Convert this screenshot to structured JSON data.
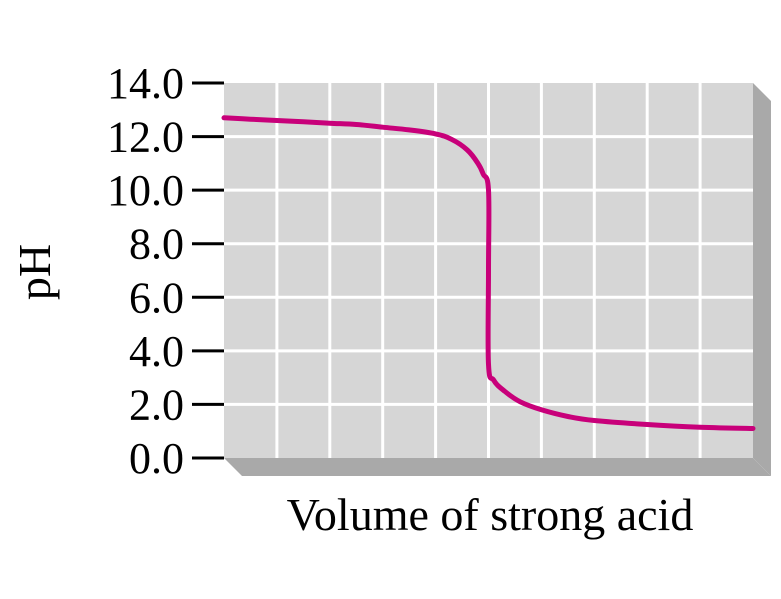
{
  "chart_data": {
    "type": "line",
    "title": "",
    "xlabel": "Volume of strong acid",
    "ylabel": "pH",
    "ylim": [
      0,
      14
    ],
    "xlim": [
      0,
      10
    ],
    "yticks": [
      "0.0",
      "2.0",
      "4.0",
      "6.0",
      "8.0",
      "10.0",
      "12.0",
      "14.0"
    ],
    "grid": true,
    "colors": {
      "curve": "#C8007A",
      "plot_bg": "#D6D6D6",
      "shadow": "#A9A9A9",
      "grid": "#FFFFFF"
    },
    "series": [
      {
        "x": [
          0,
          0.5,
          1,
          1.5,
          2,
          2.5,
          3,
          3.5,
          4,
          4.3,
          4.6,
          4.8,
          4.9,
          5.0,
          5.0,
          5.0,
          5.1,
          5.3,
          5.6,
          6,
          6.5,
          7,
          8,
          9,
          10
        ],
        "y": [
          12.7,
          12.65,
          12.6,
          12.55,
          12.5,
          12.45,
          12.35,
          12.25,
          12.1,
          11.9,
          11.5,
          11.0,
          10.6,
          10.0,
          7.0,
          3.5,
          2.9,
          2.5,
          2.1,
          1.8,
          1.55,
          1.4,
          1.25,
          1.15,
          1.1
        ]
      }
    ]
  }
}
